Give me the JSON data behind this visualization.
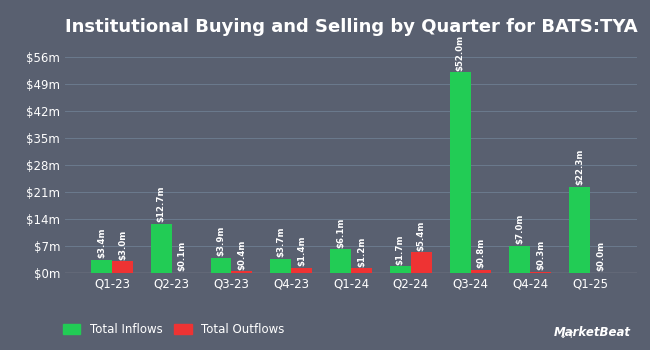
{
  "title": "Institutional Buying and Selling by Quarter for BATS:TYA",
  "quarters": [
    "Q1-23",
    "Q2-23",
    "Q3-23",
    "Q4-23",
    "Q1-24",
    "Q2-24",
    "Q3-24",
    "Q4-24",
    "Q1-25"
  ],
  "inflows": [
    3.4,
    12.7,
    3.9,
    3.7,
    6.1,
    1.7,
    52.0,
    7.0,
    22.3
  ],
  "outflows": [
    3.0,
    0.1,
    0.4,
    1.4,
    1.2,
    5.4,
    0.8,
    0.3,
    0.0
  ],
  "inflow_labels": [
    "$3.4m",
    "$12.7m",
    "$3.9m",
    "$3.7m",
    "$6.1m",
    "$1.7m",
    "$52.0m",
    "$7.0m",
    "$22.3m"
  ],
  "outflow_labels": [
    "$3.0m",
    "$0.1m",
    "$0.4m",
    "$1.4m",
    "$1.2m",
    "$5.4m",
    "$0.8m",
    "$0.3m",
    "$0.0m"
  ],
  "inflow_color": "#22cc55",
  "outflow_color": "#ee3333",
  "background_color": "#596070",
  "text_color": "#ffffff",
  "grid_color": "#6b7a8d",
  "bar_width": 0.35,
  "ylim": [
    0,
    59
  ],
  "yticks": [
    0,
    7,
    14,
    21,
    28,
    35,
    42,
    49,
    56
  ],
  "ytick_labels": [
    "$0m",
    "$7m",
    "$14m",
    "$21m",
    "$28m",
    "$35m",
    "$42m",
    "$49m",
    "$56m"
  ],
  "legend_inflow": "Total Inflows",
  "legend_outflow": "Total Outflows",
  "title_fontsize": 13,
  "label_fontsize": 6.2,
  "tick_fontsize": 8.5,
  "legend_fontsize": 8.5
}
